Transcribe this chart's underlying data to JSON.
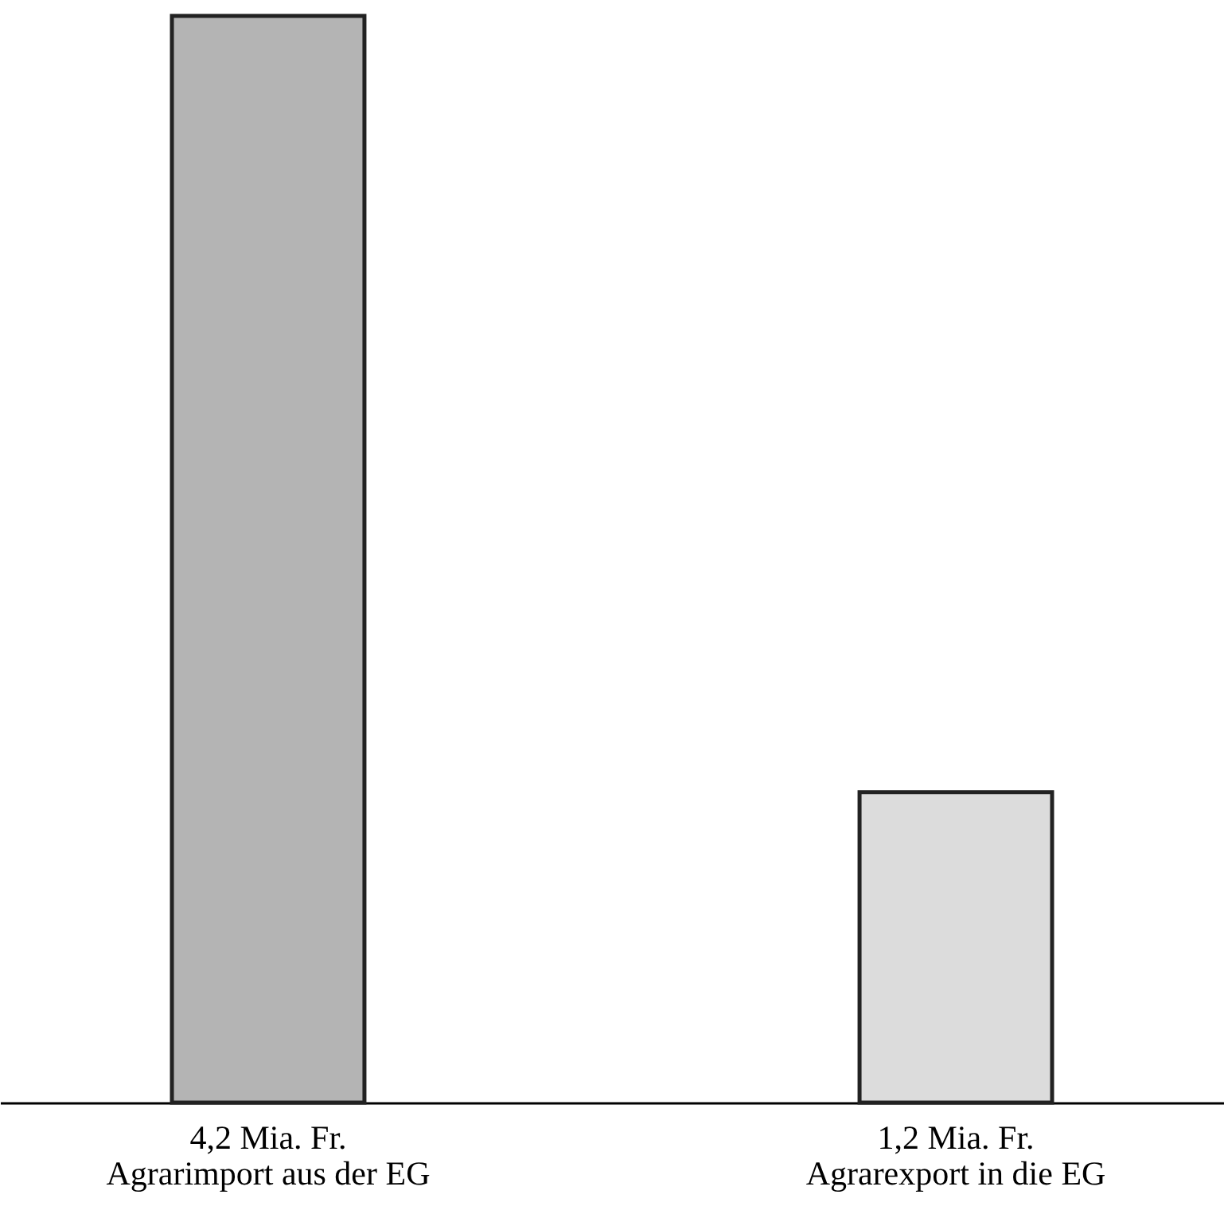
{
  "chart_data": {
    "type": "bar",
    "categories": [
      "Agrarimport aus der EG",
      "Agrarexport in die EG"
    ],
    "values": [
      4.2,
      1.2
    ],
    "value_labels": [
      "4,2 Mia. Fr.",
      "1,2 Mia. Fr."
    ],
    "colors": [
      "#b4b4b4",
      "#dcdcdc"
    ],
    "grid": false
  }
}
